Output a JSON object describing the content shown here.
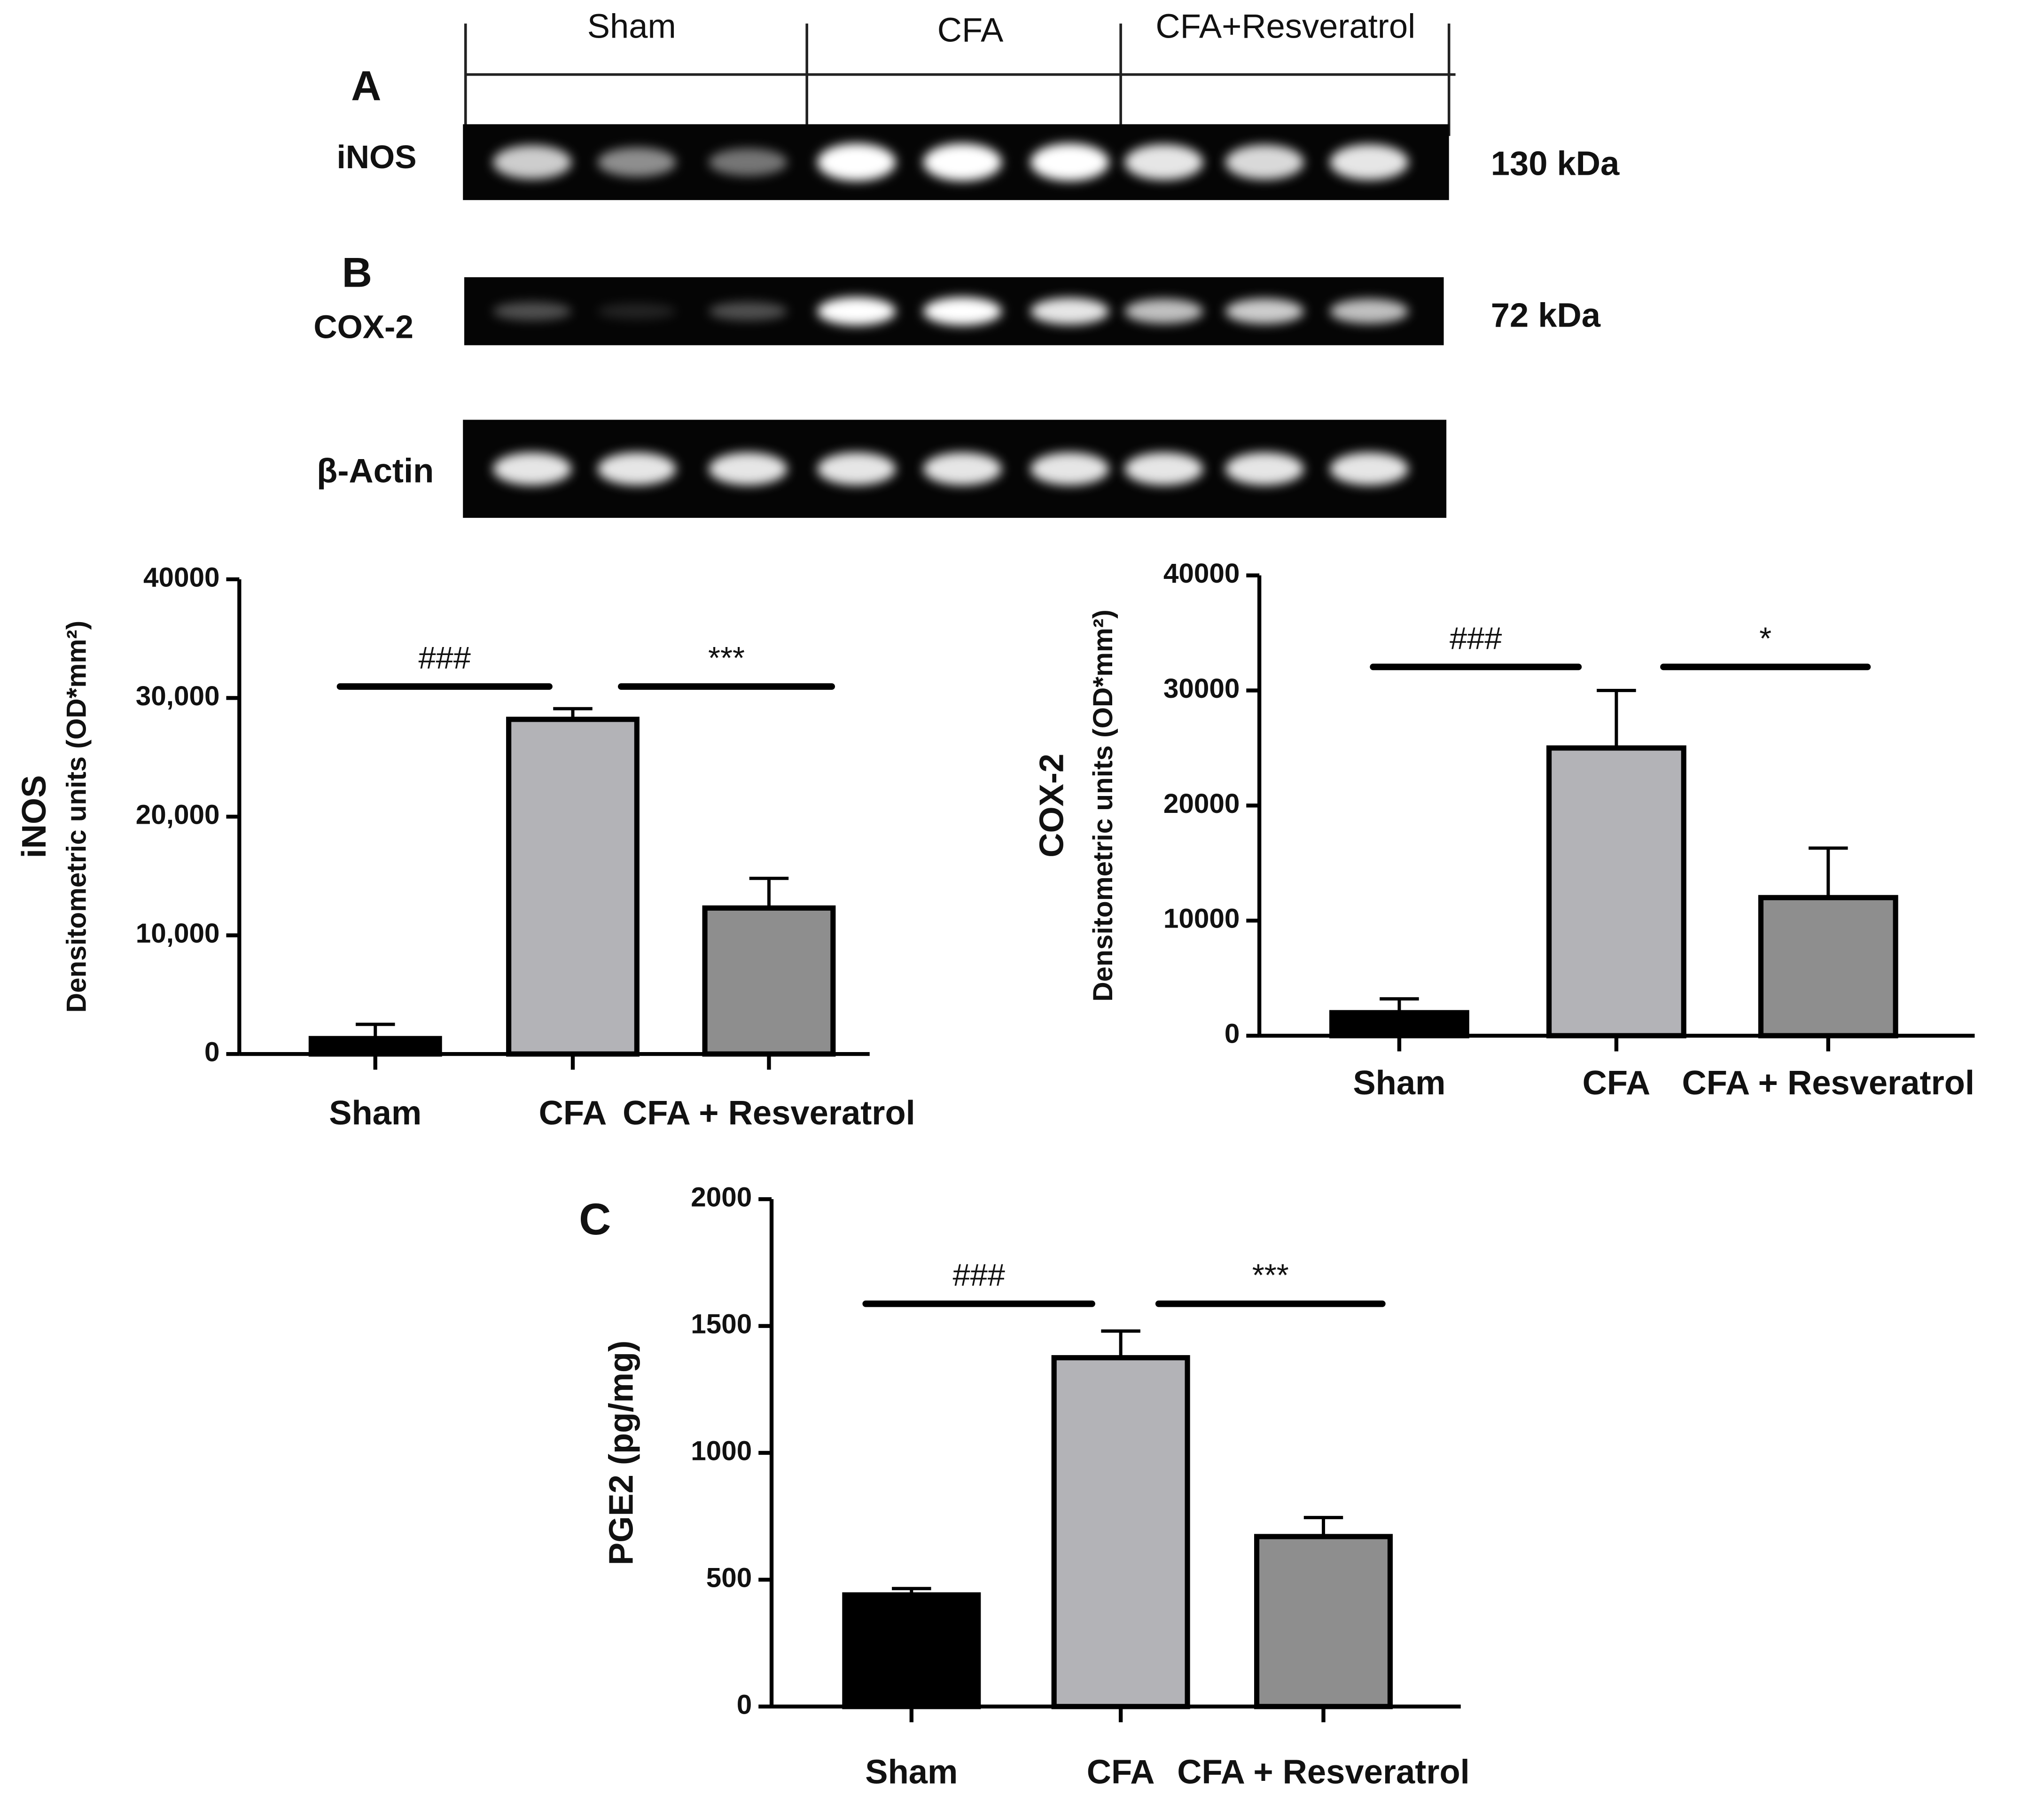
{
  "blot": {
    "groups": [
      "Sham",
      "CFA",
      "CFA+Resveratrol"
    ],
    "rows": [
      {
        "panel": "A",
        "label": "iNOS",
        "size": "130 kDa"
      },
      {
        "panel": "B",
        "label": "COX-2",
        "size": "72 kDa"
      },
      {
        "label": "β-Actin"
      }
    ]
  },
  "chart_data": [
    {
      "type": "bar",
      "ylabel": [
        "iNOS",
        "Densitometric units (OD*mm²)"
      ],
      "categories": [
        "Sham",
        "CFA",
        "CFA + Resveratrol"
      ],
      "values": [
        1300,
        28200,
        12300
      ],
      "errors": [
        1200,
        900,
        2500
      ],
      "colors": [
        "#000000",
        "#b3b3b7",
        "#8e8e8e"
      ],
      "ylim": [
        0,
        40000
      ],
      "yticks": [
        0,
        {
          "value": 10000,
          "label": "10,000"
        },
        {
          "value": 20000,
          "label": "20,000"
        },
        {
          "value": 30000,
          "label": "30,000"
        },
        40000
      ],
      "annotations": [
        {
          "text": "###"
        },
        {
          "text": "***"
        }
      ]
    },
    {
      "type": "bar",
      "ylabel": [
        "COX-2",
        "Densitometric units (OD*mm²)"
      ],
      "categories": [
        "Sham",
        "CFA",
        "CFA + Resveratrol"
      ],
      "values": [
        2000,
        25000,
        12000
      ],
      "errors": [
        1200,
        5000,
        4300
      ],
      "colors": [
        "#000000",
        "#b3b3b7",
        "#8e8e8e"
      ],
      "ylim": [
        0,
        40000
      ],
      "yticks": [
        0,
        {
          "value": 10000,
          "label": "10000"
        },
        {
          "value": 20000,
          "label": "20000"
        },
        {
          "value": 30000,
          "label": "30000"
        },
        40000
      ],
      "annotations": [
        {
          "text": "###"
        },
        {
          "text": "*"
        }
      ]
    },
    {
      "type": "bar",
      "panel": "C",
      "ylabel": [
        "PGE2 (pg/mg)"
      ],
      "categories": [
        "Sham",
        "CFA",
        "CFA + Resveratrol"
      ],
      "values": [
        440,
        1375,
        670
      ],
      "errors": [
        25,
        105,
        75
      ],
      "colors": [
        "#000000",
        "#b3b3b7",
        "#8e8e8e"
      ],
      "ylim": [
        0,
        2000
      ],
      "yticks": [
        0,
        500,
        1000,
        1500,
        2000
      ],
      "annotations": [
        {
          "text": "###"
        },
        {
          "text": "***"
        }
      ]
    }
  ]
}
